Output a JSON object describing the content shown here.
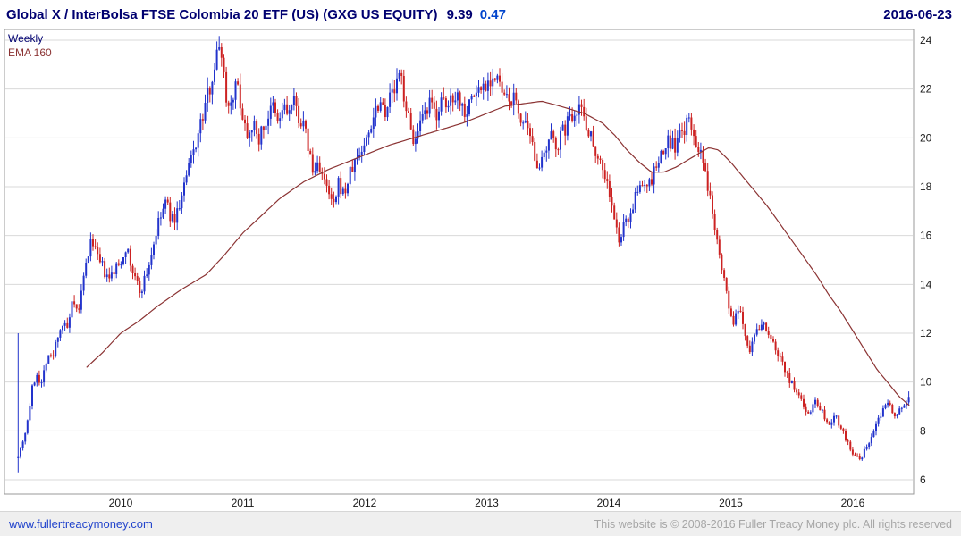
{
  "header": {
    "title": "Global X / InterBolsa FTSE Colombia 20 ETF (US) (GXG US EQUITY)",
    "last_price": "9.39",
    "change": "0.47",
    "date": "2016-06-23"
  },
  "footer": {
    "link": "www.fullertreacymoney.com",
    "copyright": "This website is © 2008-2016 Fuller Treacy Money plc. All rights reserved"
  },
  "colors": {
    "title_text": "#000070",
    "change_text": "#0044cc",
    "link_text": "#2244cc",
    "up": "#2233cc",
    "down": "#cc2222",
    "ema": "#8b3333",
    "grid": "#d9d9d9",
    "frame": "#999999",
    "axis_text": "#1a1a1a"
  },
  "chart_data": {
    "type": "candlestick",
    "title": "Global X / InterBolsa FTSE Colombia 20 ETF (US) (GXG US EQUITY)",
    "timeframe": "Weekly",
    "overlay": "EMA 160",
    "last_close": 9.39,
    "change": 0.47,
    "date": "2016-06-23",
    "grid": true,
    "legend_position": "top-left",
    "ylim": [
      6,
      24
    ],
    "y_ticks": [
      6,
      8,
      10,
      12,
      14,
      16,
      18,
      20,
      22,
      24
    ],
    "x_ticks": [
      2010,
      2011,
      2012,
      2013,
      2014,
      2015,
      2016
    ],
    "start_year": 2009.16,
    "end_year": 2016.47,
    "noise_seed": 7,
    "first_week": {
      "high": 12.0,
      "low": 6.3
    },
    "close_keypoints": [
      [
        2009.1,
        7.8
      ],
      [
        2009.14,
        6.8
      ],
      [
        2009.18,
        7.3
      ],
      [
        2009.23,
        8.2
      ],
      [
        2009.27,
        9.6
      ],
      [
        2009.31,
        10.4
      ],
      [
        2009.35,
        9.9
      ],
      [
        2009.4,
        11.2
      ],
      [
        2009.44,
        10.9
      ],
      [
        2009.48,
        11.9
      ],
      [
        2009.52,
        12.4
      ],
      [
        2009.56,
        12.1
      ],
      [
        2009.6,
        13.1
      ],
      [
        2009.65,
        12.8
      ],
      [
        2009.69,
        14.0
      ],
      [
        2009.73,
        15.2
      ],
      [
        2009.77,
        15.9
      ],
      [
        2009.81,
        15.0
      ],
      [
        2009.85,
        14.7
      ],
      [
        2009.9,
        14.1
      ],
      [
        2009.95,
        14.6
      ],
      [
        2010.0,
        14.9
      ],
      [
        2010.04,
        15.6
      ],
      [
        2010.08,
        14.8
      ],
      [
        2010.12,
        14.2
      ],
      [
        2010.16,
        13.7
      ],
      [
        2010.21,
        14.4
      ],
      [
        2010.25,
        15.2
      ],
      [
        2010.29,
        16.1
      ],
      [
        2010.33,
        16.8
      ],
      [
        2010.37,
        17.4
      ],
      [
        2010.42,
        16.6
      ],
      [
        2010.46,
        16.9
      ],
      [
        2010.5,
        17.6
      ],
      [
        2010.54,
        18.4
      ],
      [
        2010.58,
        19.2
      ],
      [
        2010.62,
        19.9
      ],
      [
        2010.67,
        20.8
      ],
      [
        2010.71,
        21.7
      ],
      [
        2010.75,
        22.6
      ],
      [
        2010.79,
        23.4
      ],
      [
        2010.82,
        24.0
      ],
      [
        2010.85,
        22.3
      ],
      [
        2010.88,
        21.2
      ],
      [
        2010.92,
        21.9
      ],
      [
        2010.96,
        22.1
      ],
      [
        2011.0,
        20.9
      ],
      [
        2011.04,
        20.2
      ],
      [
        2011.08,
        20.7
      ],
      [
        2011.12,
        19.9
      ],
      [
        2011.17,
        20.4
      ],
      [
        2011.21,
        20.9
      ],
      [
        2011.25,
        21.2
      ],
      [
        2011.29,
        20.5
      ],
      [
        2011.33,
        21.3
      ],
      [
        2011.37,
        21.0
      ],
      [
        2011.42,
        21.4
      ],
      [
        2011.46,
        20.9
      ],
      [
        2011.5,
        20.4
      ],
      [
        2011.54,
        19.6
      ],
      [
        2011.58,
        18.4
      ],
      [
        2011.62,
        19.1
      ],
      [
        2011.67,
        18.1
      ],
      [
        2011.71,
        17.6
      ],
      [
        2011.75,
        17.1
      ],
      [
        2011.79,
        18.2
      ],
      [
        2011.83,
        17.6
      ],
      [
        2011.87,
        18.4
      ],
      [
        2011.92,
        19.0
      ],
      [
        2011.96,
        19.4
      ],
      [
        2012.0,
        19.7
      ],
      [
        2012.04,
        20.4
      ],
      [
        2012.08,
        21.1
      ],
      [
        2012.12,
        21.6
      ],
      [
        2012.17,
        21.2
      ],
      [
        2012.21,
        21.7
      ],
      [
        2012.25,
        22.0
      ],
      [
        2012.29,
        22.6
      ],
      [
        2012.33,
        21.6
      ],
      [
        2012.37,
        20.4
      ],
      [
        2012.42,
        19.8
      ],
      [
        2012.46,
        20.5
      ],
      [
        2012.5,
        20.9
      ],
      [
        2012.54,
        21.4
      ],
      [
        2012.58,
        20.9
      ],
      [
        2012.62,
        21.5
      ],
      [
        2012.67,
        21.1
      ],
      [
        2012.71,
        21.7
      ],
      [
        2012.75,
        21.9
      ],
      [
        2012.79,
        21.4
      ],
      [
        2012.83,
        21.1
      ],
      [
        2012.87,
        21.6
      ],
      [
        2012.92,
        21.9
      ],
      [
        2012.96,
        22.1
      ],
      [
        2013.0,
        22.3
      ],
      [
        2013.04,
        22.5
      ],
      [
        2013.08,
        22.4
      ],
      [
        2013.12,
        21.9
      ],
      [
        2013.17,
        21.4
      ],
      [
        2013.21,
        21.7
      ],
      [
        2013.25,
        21.2
      ],
      [
        2013.29,
        20.7
      ],
      [
        2013.33,
        20.2
      ],
      [
        2013.37,
        19.6
      ],
      [
        2013.42,
        19.0
      ],
      [
        2013.46,
        18.9
      ],
      [
        2013.5,
        19.6
      ],
      [
        2013.54,
        20.1
      ],
      [
        2013.58,
        19.7
      ],
      [
        2013.62,
        20.2
      ],
      [
        2013.67,
        20.7
      ],
      [
        2013.71,
        21.1
      ],
      [
        2013.75,
        21.4
      ],
      [
        2013.79,
        21.0
      ],
      [
        2013.83,
        20.4
      ],
      [
        2013.87,
        19.8
      ],
      [
        2013.92,
        19.2
      ],
      [
        2013.96,
        18.6
      ],
      [
        2014.0,
        17.9
      ],
      [
        2014.04,
        16.7
      ],
      [
        2014.08,
        15.8
      ],
      [
        2014.12,
        16.3
      ],
      [
        2014.17,
        16.9
      ],
      [
        2014.21,
        17.4
      ],
      [
        2014.25,
        17.9
      ],
      [
        2014.29,
        18.3
      ],
      [
        2014.33,
        18.0
      ],
      [
        2014.37,
        18.6
      ],
      [
        2014.42,
        19.1
      ],
      [
        2014.46,
        19.6
      ],
      [
        2014.5,
        19.9
      ],
      [
        2014.54,
        19.6
      ],
      [
        2014.58,
        20.0
      ],
      [
        2014.62,
        20.4
      ],
      [
        2014.65,
        20.6
      ],
      [
        2014.69,
        20.3
      ],
      [
        2014.73,
        19.6
      ],
      [
        2014.77,
        18.9
      ],
      [
        2014.81,
        18.0
      ],
      [
        2014.85,
        17.0
      ],
      [
        2014.9,
        15.7
      ],
      [
        2014.94,
        14.3
      ],
      [
        2014.98,
        13.2
      ],
      [
        2015.02,
        12.3
      ],
      [
        2015.06,
        12.9
      ],
      [
        2015.1,
        12.4
      ],
      [
        2015.15,
        11.3
      ],
      [
        2015.19,
        11.8
      ],
      [
        2015.23,
        12.2
      ],
      [
        2015.27,
        12.4
      ],
      [
        2015.31,
        12.0
      ],
      [
        2015.35,
        11.5
      ],
      [
        2015.4,
        11.1
      ],
      [
        2015.44,
        10.6
      ],
      [
        2015.48,
        10.1
      ],
      [
        2015.52,
        9.7
      ],
      [
        2015.56,
        9.4
      ],
      [
        2015.6,
        9.0
      ],
      [
        2015.65,
        8.7
      ],
      [
        2015.69,
        9.3
      ],
      [
        2015.73,
        9.0
      ],
      [
        2015.77,
        8.6
      ],
      [
        2015.81,
        8.3
      ],
      [
        2015.85,
        8.7
      ],
      [
        2015.9,
        8.2
      ],
      [
        2015.94,
        7.7
      ],
      [
        2015.98,
        7.3
      ],
      [
        2016.02,
        6.9
      ],
      [
        2016.06,
        6.8
      ],
      [
        2016.1,
        7.2
      ],
      [
        2016.15,
        7.7
      ],
      [
        2016.19,
        8.2
      ],
      [
        2016.23,
        8.7
      ],
      [
        2016.27,
        9.2
      ],
      [
        2016.31,
        9.0
      ],
      [
        2016.35,
        8.7
      ],
      [
        2016.4,
        9.0
      ],
      [
        2016.44,
        9.2
      ],
      [
        2016.47,
        9.39
      ]
    ],
    "ema_keypoints": [
      [
        2009.72,
        10.6
      ],
      [
        2009.85,
        11.2
      ],
      [
        2010.0,
        12.0
      ],
      [
        2010.15,
        12.5
      ],
      [
        2010.3,
        13.1
      ],
      [
        2010.5,
        13.8
      ],
      [
        2010.7,
        14.4
      ],
      [
        2010.85,
        15.2
      ],
      [
        2011.0,
        16.1
      ],
      [
        2011.15,
        16.8
      ],
      [
        2011.3,
        17.5
      ],
      [
        2011.5,
        18.2
      ],
      [
        2011.7,
        18.7
      ],
      [
        2011.85,
        19.0
      ],
      [
        2012.0,
        19.3
      ],
      [
        2012.2,
        19.7
      ],
      [
        2012.4,
        20.0
      ],
      [
        2012.6,
        20.3
      ],
      [
        2012.8,
        20.6
      ],
      [
        2013.0,
        21.0
      ],
      [
        2013.15,
        21.3
      ],
      [
        2013.3,
        21.4
      ],
      [
        2013.45,
        21.5
      ],
      [
        2013.6,
        21.3
      ],
      [
        2013.8,
        21.0
      ],
      [
        2013.95,
        20.6
      ],
      [
        2014.05,
        20.1
      ],
      [
        2014.15,
        19.5
      ],
      [
        2014.25,
        19.0
      ],
      [
        2014.35,
        18.6
      ],
      [
        2014.45,
        18.6
      ],
      [
        2014.55,
        18.8
      ],
      [
        2014.65,
        19.1
      ],
      [
        2014.75,
        19.4
      ],
      [
        2014.82,
        19.6
      ],
      [
        2014.9,
        19.5
      ],
      [
        2015.0,
        19.0
      ],
      [
        2015.1,
        18.4
      ],
      [
        2015.2,
        17.8
      ],
      [
        2015.3,
        17.2
      ],
      [
        2015.4,
        16.5
      ],
      [
        2015.5,
        15.8
      ],
      [
        2015.6,
        15.1
      ],
      [
        2015.7,
        14.4
      ],
      [
        2015.8,
        13.6
      ],
      [
        2015.9,
        12.9
      ],
      [
        2016.0,
        12.1
      ],
      [
        2016.1,
        11.3
      ],
      [
        2016.2,
        10.5
      ],
      [
        2016.3,
        9.9
      ],
      [
        2016.38,
        9.4
      ],
      [
        2016.45,
        9.1
      ],
      [
        2016.47,
        9.0
      ]
    ]
  }
}
